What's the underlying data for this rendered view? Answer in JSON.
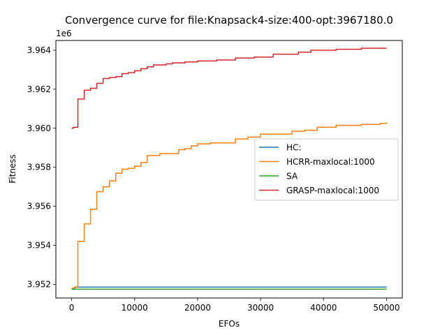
{
  "chart_data": {
    "type": "line",
    "title": "Convergence curve for file:Knapsack4-size:400-opt:3967180.0",
    "xlabel": "EFOs",
    "ylabel": "Fitness",
    "offset_label": "1e6",
    "xlim": [
      -2500,
      52500
    ],
    "ylim": [
      3951300,
      3964500
    ],
    "x_ticks": [
      0,
      10000,
      20000,
      30000,
      40000,
      50000
    ],
    "x_tick_labels": [
      "0",
      "10000",
      "20000",
      "30000",
      "40000",
      "50000"
    ],
    "y_ticks": [
      3952000,
      3954000,
      3956000,
      3958000,
      3960000,
      3962000,
      3964000
    ],
    "y_tick_labels": [
      "3.952",
      "3.954",
      "3.956",
      "3.958",
      "3.960",
      "3.962",
      "3.964"
    ],
    "grid": false,
    "legend_position": "center-right",
    "series": [
      {
        "name": "HC:",
        "color": "#1f77b4",
        "step": true,
        "points": [
          [
            0,
            3951800
          ],
          [
            500,
            3951860
          ],
          [
            50000,
            3951860
          ]
        ]
      },
      {
        "name": "HCRR-maxlocal:1000",
        "color": "#ff7f0e",
        "step": true,
        "points": [
          [
            0,
            3951800
          ],
          [
            500,
            3951850
          ],
          [
            1000,
            3954200
          ],
          [
            2000,
            3955100
          ],
          [
            3000,
            3955850
          ],
          [
            4000,
            3956750
          ],
          [
            5000,
            3957000
          ],
          [
            6000,
            3957300
          ],
          [
            7000,
            3957700
          ],
          [
            8000,
            3957900
          ],
          [
            9000,
            3957950
          ],
          [
            10000,
            3958050
          ],
          [
            11000,
            3958250
          ],
          [
            12000,
            3958600
          ],
          [
            14000,
            3958700
          ],
          [
            17000,
            3958900
          ],
          [
            18000,
            3958950
          ],
          [
            19000,
            3959100
          ],
          [
            20000,
            3959200
          ],
          [
            22000,
            3959250
          ],
          [
            26000,
            3959450
          ],
          [
            28000,
            3959550
          ],
          [
            30000,
            3959700
          ],
          [
            35000,
            3959850
          ],
          [
            37000,
            3959900
          ],
          [
            39000,
            3960050
          ],
          [
            42000,
            3960150
          ],
          [
            46000,
            3960200
          ],
          [
            49000,
            3960250
          ],
          [
            50000,
            3960300
          ]
        ]
      },
      {
        "name": "SA",
        "color": "#2ca02c",
        "step": true,
        "points": [
          [
            0,
            3951750
          ],
          [
            50000,
            3951750
          ]
        ]
      },
      {
        "name": "GRASP-maxlocal:1000",
        "color": "#d62728",
        "step": true,
        "points": [
          [
            0,
            3960000
          ],
          [
            300,
            3960050
          ],
          [
            1000,
            3961500
          ],
          [
            2000,
            3961950
          ],
          [
            3000,
            3962050
          ],
          [
            4000,
            3962300
          ],
          [
            5000,
            3962550
          ],
          [
            6000,
            3962600
          ],
          [
            7000,
            3962650
          ],
          [
            8000,
            3962800
          ],
          [
            9000,
            3962850
          ],
          [
            10000,
            3962950
          ],
          [
            11000,
            3963050
          ],
          [
            12000,
            3963150
          ],
          [
            13000,
            3963250
          ],
          [
            15000,
            3963300
          ],
          [
            16000,
            3963350
          ],
          [
            18000,
            3963400
          ],
          [
            20000,
            3963450
          ],
          [
            23000,
            3963500
          ],
          [
            26000,
            3963600
          ],
          [
            29000,
            3963650
          ],
          [
            32000,
            3963800
          ],
          [
            36000,
            3963900
          ],
          [
            38000,
            3964000
          ],
          [
            42000,
            3964050
          ],
          [
            46000,
            3964100
          ],
          [
            50000,
            3964100
          ]
        ]
      }
    ]
  }
}
